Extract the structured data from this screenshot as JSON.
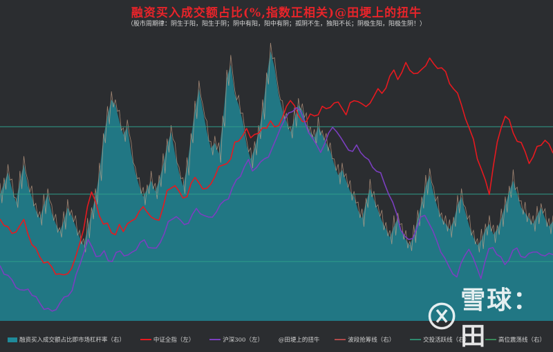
{
  "header": {
    "title": "融资买入成交额占比(%,指数正相关)@田埂上的扭牛",
    "subtitle": "（股市周期律：阴生于阳，阳生于阴；阴中有阳，阳中有阴；孤阴不生，独阳不长；阴极生阳，阳极生阴！）"
  },
  "legend": [
    {
      "label": "融资买入成交额占比即市场杠杆率（右）",
      "type": "area",
      "color": "#1f8a9a"
    },
    {
      "label": "中证全指（左）",
      "type": "line",
      "color": "#e8191f"
    },
    {
      "label": "沪深300（左）",
      "type": "line",
      "color": "#7b3fc0"
    },
    {
      "label": "@田埂上的扭牛",
      "type": "text",
      "color": "#d0d0d0"
    },
    {
      "label": "波段抢筹线（右）",
      "type": "line",
      "color": "#b04a4a"
    },
    {
      "label": "交投活跃线（右）",
      "type": "line",
      "color": "#2e8b6e"
    },
    {
      "label": "高位震荡线（右）",
      "type": "line",
      "color": "#3a8a5a"
    }
  ],
  "watermark": {
    "text": "雪球：田",
    "icon": "xueqiu-logo-icon"
  },
  "colors": {
    "area": "#1f8a9a",
    "area_spike": "#c9a48a",
    "csi_all": "#e8191f",
    "hs300": "#7b3fc0",
    "ref_line": "#2f9d8a"
  },
  "chart_data": {
    "type": "line",
    "title": "融资买入成交额占比(%,指数正相关)@田埂上的扭牛",
    "xlabel": "",
    "ylabel": "",
    "reference_lines": [
      {
        "name": "波段抢筹线（右）",
        "value": 0.72
      },
      {
        "name": "交投活跃线（右）",
        "value": 0.47
      },
      {
        "name": "高位震荡线（右）",
        "value": 0.22
      }
    ],
    "series": [
      {
        "name": "融资买入成交额占比即市场杠杆率（右）",
        "kind": "area",
        "values": [
          0.47,
          0.51,
          0.55,
          0.49,
          0.44,
          0.52,
          0.58,
          0.5,
          0.46,
          0.41,
          0.38,
          0.43,
          0.47,
          0.4,
          0.36,
          0.33,
          0.37,
          0.42,
          0.39,
          0.35,
          0.31,
          0.28,
          0.34,
          0.4,
          0.46,
          0.55,
          0.68,
          0.76,
          0.82,
          0.8,
          0.74,
          0.69,
          0.72,
          0.62,
          0.55,
          0.5,
          0.46,
          0.49,
          0.52,
          0.48,
          0.52,
          0.58,
          0.65,
          0.7,
          0.62,
          0.55,
          0.5,
          0.57,
          0.68,
          0.78,
          0.86,
          0.78,
          0.7,
          0.64,
          0.66,
          0.62,
          0.74,
          0.9,
          0.95,
          0.84,
          0.8,
          0.74,
          0.65,
          0.6,
          0.64,
          0.7,
          0.78,
          0.9,
          1.0,
          0.94,
          0.84,
          0.78,
          0.74,
          0.7,
          0.75,
          0.8,
          0.78,
          0.73,
          0.7,
          0.68,
          0.72,
          0.69,
          0.66,
          0.63,
          0.58,
          0.54,
          0.56,
          0.52,
          0.48,
          0.46,
          0.41,
          0.38,
          0.44,
          0.49,
          0.45,
          0.41,
          0.37,
          0.34,
          0.31,
          0.35,
          0.38,
          0.33,
          0.3,
          0.28,
          0.32,
          0.38,
          0.44,
          0.5,
          0.54,
          0.47,
          0.42,
          0.38,
          0.36,
          0.34,
          0.37,
          0.43,
          0.46,
          0.4,
          0.35,
          0.31,
          0.28,
          0.3,
          0.34,
          0.36,
          0.32,
          0.34,
          0.38,
          0.43,
          0.48,
          0.52,
          0.47,
          0.42,
          0.4,
          0.38,
          0.36,
          0.39,
          0.42,
          0.38,
          0.35,
          0.37
        ]
      },
      {
        "name": "中证全指（左）",
        "kind": "line",
        "values": [
          0.46,
          0.44,
          0.42,
          0.39,
          0.41,
          0.43,
          0.45,
          0.4,
          0.35,
          0.32,
          0.29,
          0.27,
          0.26,
          0.24,
          0.22,
          0.21,
          0.2,
          0.22,
          0.24,
          0.28,
          0.35,
          0.42,
          0.51,
          0.58,
          0.55,
          0.47,
          0.43,
          0.45,
          0.4,
          0.38,
          0.44,
          0.41,
          0.43,
          0.45,
          0.47,
          0.49,
          0.51,
          0.5,
          0.47,
          0.45,
          0.46,
          0.52,
          0.58,
          0.6,
          0.62,
          0.58,
          0.55,
          0.57,
          0.62,
          0.64,
          0.63,
          0.6,
          0.59,
          0.62,
          0.66,
          0.69,
          0.7,
          0.72,
          0.73,
          0.8,
          0.82,
          0.84,
          0.86,
          0.83,
          0.85,
          0.84,
          0.87,
          0.88,
          0.9,
          0.87,
          0.89,
          0.92,
          0.96,
          1.0,
          0.98,
          0.92,
          0.9,
          0.91,
          0.93,
          0.92,
          0.94,
          0.97,
          0.95,
          0.97,
          0.99,
          0.98,
          0.96,
          0.94,
          0.98,
          0.99,
          1.0,
          0.98,
          0.96,
          0.99,
          1.02,
          1.04,
          1.03,
          1.06,
          1.1,
          1.13,
          1.1,
          1.12,
          1.16,
          1.14,
          1.12,
          1.11,
          1.14,
          1.16,
          1.18,
          1.16,
          1.15,
          1.14,
          1.12,
          1.08,
          1.05,
          1.02,
          0.98,
          0.92,
          0.86,
          0.82,
          0.74,
          0.68,
          0.63,
          0.58,
          0.7,
          0.8,
          0.88,
          0.93,
          0.9,
          0.85,
          0.82,
          0.8,
          0.76,
          0.72,
          0.74,
          0.78,
          0.8,
          0.82,
          0.79,
          0.76
        ]
      },
      {
        "name": "沪深300（左）",
        "kind": "line",
        "values": [
          0.25,
          0.22,
          0.2,
          0.18,
          0.16,
          0.14,
          0.13,
          0.15,
          0.12,
          0.1,
          0.08,
          0.06,
          0.05,
          0.04,
          0.06,
          0.08,
          0.1,
          0.12,
          0.14,
          0.2,
          0.26,
          0.32,
          0.36,
          0.33,
          0.3,
          0.29,
          0.31,
          0.28,
          0.27,
          0.3,
          0.32,
          0.3,
          0.29,
          0.31,
          0.33,
          0.35,
          0.36,
          0.34,
          0.33,
          0.32,
          0.36,
          0.4,
          0.44,
          0.46,
          0.48,
          0.45,
          0.43,
          0.45,
          0.48,
          0.5,
          0.49,
          0.48,
          0.46,
          0.47,
          0.5,
          0.52,
          0.54,
          0.56,
          0.6,
          0.63,
          0.66,
          0.7,
          0.72,
          0.68,
          0.7,
          0.71,
          0.73,
          0.75,
          0.78,
          0.82,
          0.88,
          0.91,
          0.93,
          0.95,
          0.97,
          0.94,
          0.9,
          0.86,
          0.82,
          0.79,
          0.77,
          0.8,
          0.84,
          0.88,
          0.86,
          0.82,
          0.8,
          0.78,
          0.76,
          0.79,
          0.77,
          0.74,
          0.72,
          0.7,
          0.68,
          0.66,
          0.62,
          0.58,
          0.53,
          0.48,
          0.42,
          0.38,
          0.36,
          0.38,
          0.42,
          0.46,
          0.48,
          0.45,
          0.4,
          0.36,
          0.32,
          0.28,
          0.24,
          0.22,
          0.2,
          0.25,
          0.3,
          0.33,
          0.28,
          0.24,
          0.2,
          0.26,
          0.32,
          0.34,
          0.3,
          0.28,
          0.26,
          0.28,
          0.31,
          0.33,
          0.3,
          0.28,
          0.3,
          0.32,
          0.31,
          0.29,
          0.3,
          0.31,
          0.29
        ]
      }
    ]
  }
}
